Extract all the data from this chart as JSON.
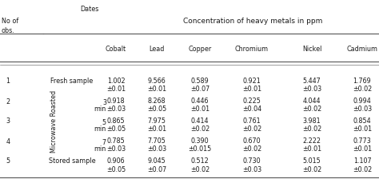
{
  "title": "Dates",
  "main_header": "Concentration of heavy metals in ppm",
  "noof_line1": "No of",
  "noof_line2": "obs.",
  "col_headers": [
    "Cobalt",
    "Lead",
    "Copper",
    "Chromium",
    "Nickel",
    "Cadmium"
  ],
  "rows": [
    {
      "obs": "1",
      "label": "Fresh sample",
      "mw_label": "",
      "time_num": "",
      "time_unit": "",
      "values": [
        "1.002",
        "9.566",
        "0.589",
        "0.921",
        "5.447",
        "1.769"
      ],
      "errors": [
        "±0.01",
        "±0.01",
        "±0.07",
        "±0.01",
        "±0.03",
        "±0.02"
      ]
    },
    {
      "obs": "2",
      "label": "",
      "mw_label": "Microwave Roasted",
      "time_num": "3",
      "time_unit": "min",
      "values": [
        "0.918",
        "8.268",
        "0.446",
        "0.225",
        "4.044",
        "0.994"
      ],
      "errors": [
        "±0.03",
        "±0.05",
        "±0.01",
        "±0.04",
        "±0.02",
        "±0.03"
      ]
    },
    {
      "obs": "3",
      "label": "",
      "mw_label": "",
      "time_num": "5",
      "time_unit": "min",
      "values": [
        "0.865",
        "7.975",
        "0.414",
        "0.761",
        "3.981",
        "0.854"
      ],
      "errors": [
        "±0.05",
        "±0.01",
        "±0.02",
        "±0.02",
        "±0.02",
        "±0.01"
      ]
    },
    {
      "obs": "4",
      "label": "",
      "mw_label": "",
      "time_num": "7",
      "time_unit": "min",
      "values": [
        "0.785",
        "7.705",
        "0.390",
        "0.670",
        "2.222",
        "0.773"
      ],
      "errors": [
        "±0.03",
        "±0.03",
        "±0.015",
        "±0.02",
        "±0.01",
        "±0.01"
      ]
    },
    {
      "obs": "5",
      "label": "Stored sample",
      "mw_label": "",
      "time_num": "",
      "time_unit": "",
      "values": [
        "0.906",
        "9.045",
        "0.512",
        "0.730",
        "5.015",
        "1.107"
      ],
      "errors": [
        "±0.05",
        "±0.07",
        "±0.02",
        "±0.03",
        "±0.02",
        "±0.02"
      ]
    }
  ],
  "bg_color": "#ffffff",
  "text_color": "#1a1a1a",
  "line_color": "#555555",
  "font_size": 5.8,
  "header_font_size": 6.5
}
